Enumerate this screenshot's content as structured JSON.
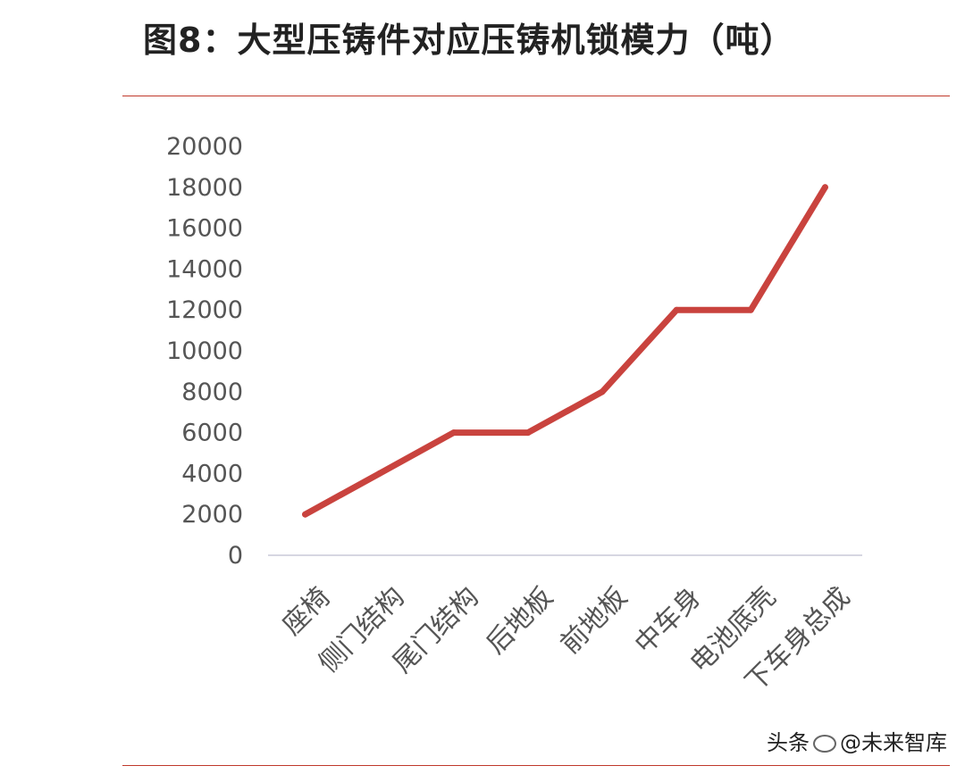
{
  "title": "图8：大型压铸件对应压铸机锁模力（吨）",
  "watermark": {
    "platform": "头条",
    "handle": "@未来智库"
  },
  "colors": {
    "line": "#c9433e",
    "rule": "#c0392b",
    "axis": "#c8c8d8",
    "text": "#555555"
  },
  "chart_data": {
    "type": "line",
    "categories": [
      "座椅",
      "侧门结构",
      "尾门结构",
      "后地板",
      "前地板",
      "中车身",
      "电池底壳",
      "下车身总成"
    ],
    "values": [
      2000,
      4000,
      6000,
      6000,
      8000,
      12000,
      12000,
      18000
    ],
    "ylim": [
      0,
      20000
    ],
    "yticks": [
      "0",
      "2000",
      "4000",
      "6000",
      "8000",
      "10000",
      "12000",
      "14000",
      "16000",
      "18000",
      "20000"
    ],
    "xlabel": "",
    "ylabel": "",
    "grid": false,
    "legend": "none"
  }
}
